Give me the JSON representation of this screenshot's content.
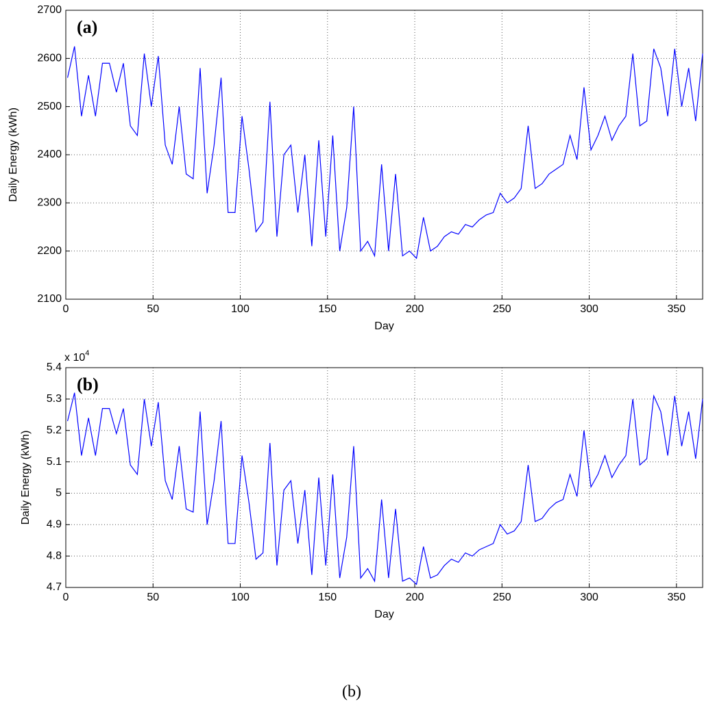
{
  "chart_data": [
    {
      "type": "line",
      "panel_label": "(a)",
      "x_label": "Day",
      "y_label": "Daily Energy (kWh)",
      "xlim": [
        0,
        365
      ],
      "ylim": [
        2100,
        2700
      ],
      "xticks": [
        0,
        50,
        100,
        150,
        200,
        250,
        300,
        350
      ],
      "yticks": [
        2100,
        2200,
        2300,
        2400,
        2500,
        2600,
        2700
      ],
      "grid": true,
      "color": "#0000ff",
      "x": [
        1,
        5,
        9,
        13,
        17,
        21,
        25,
        29,
        33,
        37,
        41,
        45,
        49,
        53,
        57,
        61,
        65,
        69,
        73,
        77,
        81,
        85,
        89,
        93,
        97,
        101,
        105,
        109,
        113,
        117,
        121,
        125,
        129,
        133,
        137,
        141,
        145,
        149,
        153,
        157,
        161,
        165,
        169,
        173,
        177,
        181,
        185,
        189,
        193,
        197,
        201,
        205,
        209,
        213,
        217,
        221,
        225,
        229,
        233,
        237,
        241,
        245,
        249,
        253,
        257,
        261,
        265,
        269,
        273,
        277,
        281,
        285,
        289,
        293,
        297,
        301,
        305,
        309,
        313,
        317,
        321,
        325,
        329,
        333,
        337,
        341,
        345,
        349,
        353,
        357,
        361,
        365
      ],
      "values": [
        2560,
        2625,
        2480,
        2565,
        2480,
        2590,
        2590,
        2530,
        2590,
        2460,
        2440,
        2610,
        2500,
        2605,
        2420,
        2380,
        2500,
        2360,
        2350,
        2580,
        2320,
        2420,
        2560,
        2280,
        2280,
        2480,
        2370,
        2240,
        2260,
        2510,
        2230,
        2400,
        2420,
        2280,
        2400,
        2210,
        2430,
        2230,
        2440,
        2200,
        2290,
        2500,
        2200,
        2220,
        2190,
        2380,
        2200,
        2360,
        2190,
        2200,
        2185,
        2270,
        2200,
        2210,
        2230,
        2240,
        2235,
        2255,
        2250,
        2265,
        2275,
        2280,
        2320,
        2300,
        2310,
        2330,
        2460,
        2330,
        2340,
        2360,
        2370,
        2380,
        2440,
        2390,
        2540,
        2410,
        2440,
        2480,
        2430,
        2460,
        2480,
        2610,
        2460,
        2470,
        2620,
        2580,
        2480,
        2620,
        2500,
        2580,
        2470,
        2610
      ]
    },
    {
      "type": "line",
      "panel_label": "(b)",
      "x_label": "Day",
      "y_label": "Daily Energy (kWh)",
      "y_exponent": {
        "base": "x 10",
        "power": "4"
      },
      "xlim": [
        0,
        365
      ],
      "ylim": [
        4.7,
        5.4
      ],
      "xticks": [
        0,
        50,
        100,
        150,
        200,
        250,
        300,
        350
      ],
      "yticks": [
        4.7,
        4.8,
        4.9,
        5,
        5.1,
        5.2,
        5.3,
        5.4
      ],
      "grid": true,
      "color": "#0000ff",
      "x": [
        1,
        5,
        9,
        13,
        17,
        21,
        25,
        29,
        33,
        37,
        41,
        45,
        49,
        53,
        57,
        61,
        65,
        69,
        73,
        77,
        81,
        85,
        89,
        93,
        97,
        101,
        105,
        109,
        113,
        117,
        121,
        125,
        129,
        133,
        137,
        141,
        145,
        149,
        153,
        157,
        161,
        165,
        169,
        173,
        177,
        181,
        185,
        189,
        193,
        197,
        201,
        205,
        209,
        213,
        217,
        221,
        225,
        229,
        233,
        237,
        241,
        245,
        249,
        253,
        257,
        261,
        265,
        269,
        273,
        277,
        281,
        285,
        289,
        293,
        297,
        301,
        305,
        309,
        313,
        317,
        321,
        325,
        329,
        333,
        337,
        341,
        345,
        349,
        353,
        357,
        361,
        365
      ],
      "values": [
        5.23,
        5.32,
        5.12,
        5.24,
        5.12,
        5.27,
        5.27,
        5.19,
        5.27,
        5.09,
        5.06,
        5.3,
        5.15,
        5.29,
        5.04,
        4.98,
        5.15,
        4.95,
        4.94,
        5.26,
        4.9,
        5.04,
        5.23,
        4.84,
        4.84,
        5.12,
        4.97,
        4.79,
        4.81,
        5.16,
        4.77,
        5.01,
        5.04,
        4.84,
        5.01,
        4.74,
        5.05,
        4.77,
        5.06,
        4.73,
        4.86,
        5.15,
        4.73,
        4.76,
        4.72,
        4.98,
        4.73,
        4.95,
        4.72,
        4.73,
        4.71,
        4.83,
        4.73,
        4.74,
        4.77,
        4.79,
        4.78,
        4.81,
        4.8,
        4.82,
        4.83,
        4.84,
        4.9,
        4.87,
        4.88,
        4.91,
        5.09,
        4.91,
        4.92,
        4.95,
        4.97,
        4.98,
        5.06,
        4.99,
        5.2,
        5.02,
        5.06,
        5.12,
        5.05,
        5.09,
        5.12,
        5.3,
        5.09,
        5.11,
        5.31,
        5.26,
        5.12,
        5.31,
        5.15,
        5.26,
        5.11,
        5.3
      ]
    }
  ],
  "caption": "(b)"
}
